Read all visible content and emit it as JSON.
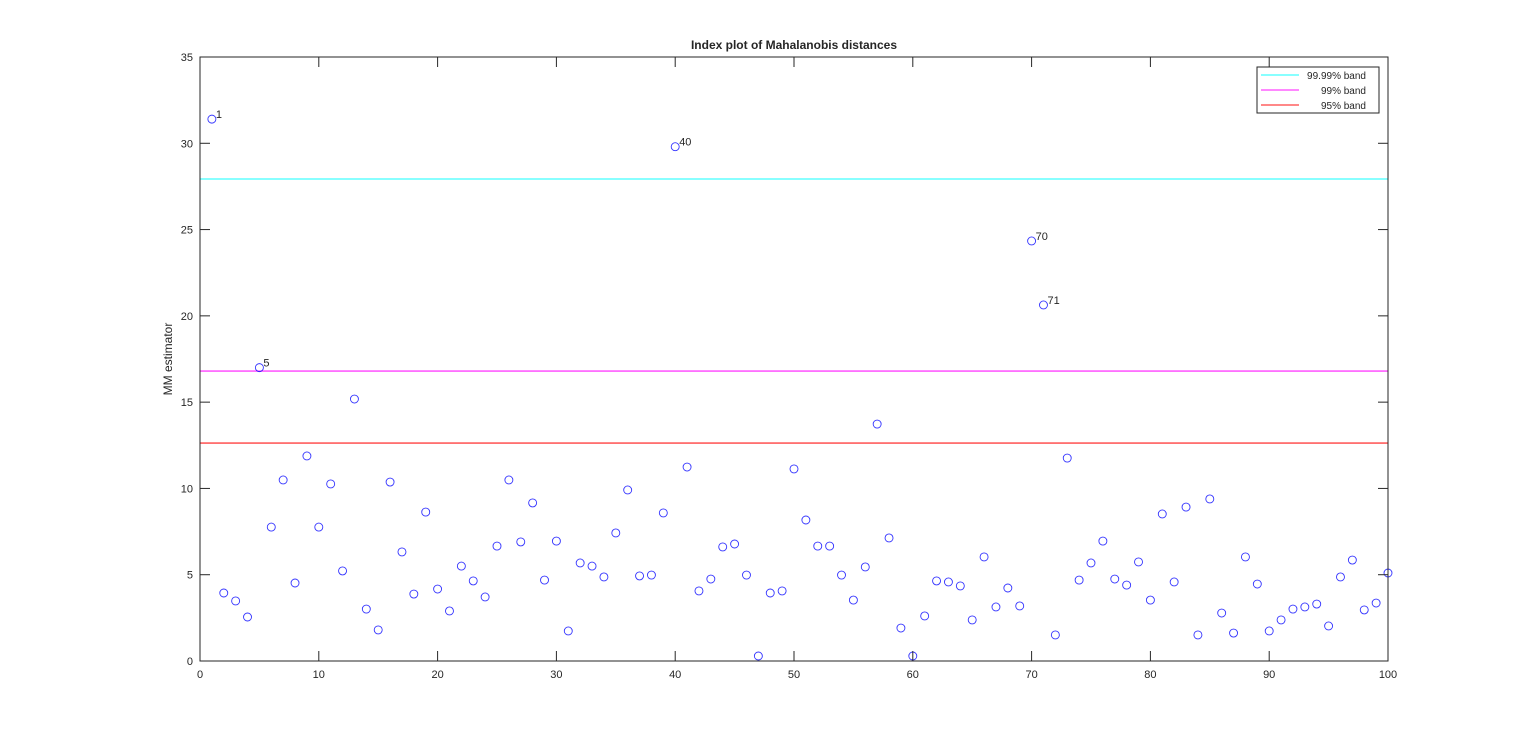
{
  "chart_data": {
    "type": "scatter",
    "title": "Index plot of Mahalanobis distances",
    "xlabel": "",
    "ylabel": "MM estimator",
    "xlim": [
      0,
      100
    ],
    "ylim": [
      0,
      35
    ],
    "xticks": [
      0,
      10,
      20,
      30,
      40,
      50,
      60,
      70,
      80,
      90,
      100
    ],
    "yticks": [
      0,
      5,
      10,
      15,
      20,
      25,
      30,
      35
    ],
    "grid": false,
    "legend_position": "top-right",
    "marker": "open-circle",
    "marker_color": "#0000ff",
    "x": [
      1,
      2,
      3,
      4,
      5,
      6,
      7,
      8,
      9,
      10,
      11,
      12,
      13,
      14,
      15,
      16,
      17,
      18,
      19,
      20,
      21,
      22,
      23,
      24,
      25,
      26,
      27,
      28,
      29,
      30,
      31,
      32,
      33,
      34,
      35,
      36,
      37,
      38,
      39,
      40,
      41,
      42,
      43,
      44,
      45,
      46,
      47,
      48,
      49,
      50,
      51,
      52,
      53,
      54,
      55,
      56,
      57,
      58,
      59,
      60,
      61,
      62,
      63,
      64,
      65,
      66,
      67,
      68,
      69,
      70,
      71,
      72,
      73,
      74,
      75,
      76,
      77,
      78,
      79,
      80,
      81,
      82,
      83,
      84,
      85,
      86,
      87,
      88,
      89,
      90,
      91,
      92,
      93,
      94,
      95,
      96,
      97,
      98,
      99,
      100
    ],
    "values": [
      31.4,
      3.94,
      3.48,
      2.55,
      17.0,
      7.76,
      10.49,
      4.52,
      11.88,
      7.76,
      10.26,
      5.22,
      15.18,
      3.01,
      1.8,
      10.37,
      6.32,
      3.88,
      8.63,
      4.17,
      2.9,
      5.5,
      4.64,
      3.71,
      6.66,
      10.49,
      6.9,
      9.16,
      4.69,
      6.95,
      1.74,
      5.68,
      5.5,
      4.87,
      7.42,
      9.91,
      4.93,
      4.98,
      8.58,
      29.8,
      11.24,
      4.06,
      4.75,
      6.61,
      6.78,
      4.98,
      0.29,
      3.94,
      4.06,
      11.13,
      8.17,
      6.66,
      6.66,
      4.98,
      3.53,
      5.45,
      13.73,
      7.13,
      1.91,
      0.29,
      2.61,
      4.64,
      4.58,
      4.35,
      2.38,
      6.03,
      3.13,
      4.23,
      3.19,
      24.34,
      20.63,
      1.51,
      11.76,
      4.69,
      5.68,
      6.95,
      4.75,
      4.4,
      5.74,
      3.53,
      8.52,
      4.58,
      8.92,
      1.51,
      9.39,
      2.78,
      1.62,
      6.03,
      4.46,
      1.74,
      2.38,
      3.01,
      3.13,
      3.3,
      2.03,
      4.87,
      5.85,
      2.96,
      3.36,
      5.1
    ],
    "bands": [
      {
        "name": "99.99% band",
        "value": 27.93,
        "color": "#00ffff"
      },
      {
        "name": "99% band",
        "value": 16.8,
        "color": "#ff00ff"
      },
      {
        "name": "95% band",
        "value": 12.63,
        "color": "#ff0000"
      }
    ],
    "annotations": [
      {
        "x": 1,
        "label": "1"
      },
      {
        "x": 5,
        "label": "5"
      },
      {
        "x": 40,
        "label": "40"
      },
      {
        "x": 70,
        "label": "70"
      },
      {
        "x": 71,
        "label": "71"
      }
    ]
  }
}
